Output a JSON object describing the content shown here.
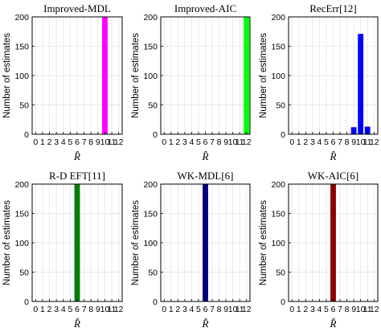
{
  "chart_data": [
    {
      "type": "bar",
      "title": "Improved-MDL",
      "xlabel": "R̂",
      "ylabel": "Number of estimates",
      "x_ticks": [
        "0",
        "1",
        "2",
        "3",
        "4",
        "5",
        "6",
        "7",
        "8",
        "9",
        "10",
        "11",
        "12"
      ],
      "y_ticks": [
        "0",
        "50",
        "100",
        "150",
        "200"
      ],
      "xlim": [
        -0.5,
        12.5
      ],
      "ylim": [
        0,
        200
      ],
      "grid": true,
      "color": "#ff00ff",
      "bars": [
        {
          "x": 10,
          "value": 200
        }
      ]
    },
    {
      "type": "bar",
      "title": "Improved-AIC",
      "xlabel": "R̂",
      "ylabel": "Number of estimates",
      "x_ticks": [
        "0",
        "1",
        "2",
        "3",
        "4",
        "5",
        "6",
        "7",
        "8",
        "9",
        "10",
        "11",
        "12"
      ],
      "y_ticks": [
        "0",
        "50",
        "100",
        "150",
        "200"
      ],
      "xlim": [
        -0.5,
        12.5
      ],
      "ylim": [
        0,
        200
      ],
      "grid": true,
      "color": "#00ff00",
      "bars": [
        {
          "x": 12,
          "value": 200
        }
      ]
    },
    {
      "type": "bar",
      "title": "RecErr[12]",
      "xlabel": "R̂",
      "ylabel": "Number of estimates",
      "x_ticks": [
        "0",
        "1",
        "2",
        "3",
        "4",
        "5",
        "6",
        "7",
        "8",
        "9",
        "10",
        "11",
        "12"
      ],
      "y_ticks": [
        "0",
        "50",
        "100",
        "150",
        "200"
      ],
      "xlim": [
        -0.5,
        12.5
      ],
      "ylim": [
        0,
        200
      ],
      "grid": true,
      "color": "#0000ff",
      "bars": [
        {
          "x": 9,
          "value": 12
        },
        {
          "x": 10,
          "value": 171
        },
        {
          "x": 11,
          "value": 13
        }
      ]
    },
    {
      "type": "bar",
      "title": "R-D EFT[11]",
      "xlabel": "R̂",
      "ylabel": "Number of estimates",
      "x_ticks": [
        "0",
        "1",
        "2",
        "3",
        "4",
        "5",
        "6",
        "7",
        "8",
        "9",
        "10",
        "11",
        "12"
      ],
      "y_ticks": [
        "0",
        "50",
        "100",
        "150",
        "200"
      ],
      "xlim": [
        -0.5,
        12.5
      ],
      "ylim": [
        0,
        200
      ],
      "grid": true,
      "color": "#008000",
      "bars": [
        {
          "x": 6,
          "value": 200
        }
      ]
    },
    {
      "type": "bar",
      "title": "WK-MDL[6]",
      "xlabel": "R̂",
      "ylabel": "Number of estimates",
      "x_ticks": [
        "0",
        "1",
        "2",
        "3",
        "4",
        "5",
        "6",
        "7",
        "8",
        "9",
        "10",
        "11",
        "12"
      ],
      "y_ticks": [
        "0",
        "50",
        "100",
        "150",
        "200"
      ],
      "xlim": [
        -0.5,
        12.5
      ],
      "ylim": [
        0,
        200
      ],
      "grid": true,
      "color": "#000080",
      "bars": [
        {
          "x": 6,
          "value": 200
        }
      ]
    },
    {
      "type": "bar",
      "title": "WK-AIC[6]",
      "xlabel": "R̂",
      "ylabel": "Number of estimates",
      "x_ticks": [
        "0",
        "1",
        "2",
        "3",
        "4",
        "5",
        "6",
        "7",
        "8",
        "9",
        "10",
        "11",
        "12"
      ],
      "y_ticks": [
        "0",
        "50",
        "100",
        "150",
        "200"
      ],
      "xlim": [
        -0.5,
        12.5
      ],
      "ylim": [
        0,
        200
      ],
      "grid": true,
      "color": "#8b0000",
      "bars": [
        {
          "x": 6,
          "value": 200
        }
      ]
    }
  ]
}
